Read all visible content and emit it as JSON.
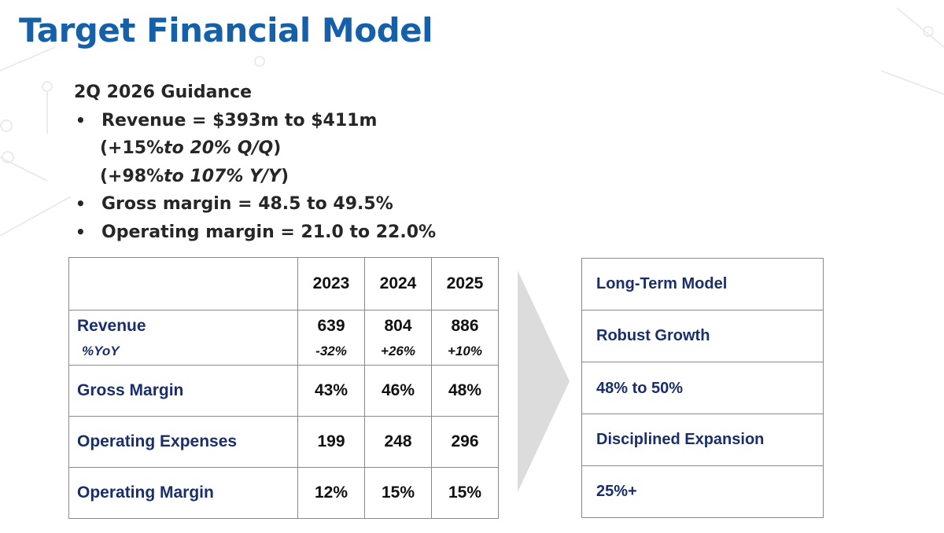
{
  "slide": {
    "title": "Target Financial Model"
  },
  "guidance": {
    "heading": "2Q 2026 Guidance",
    "revenue": "Revenue = $393m to $411m",
    "qq_open": "(+15%",
    "qq_italic": " to 20% Q/Q",
    "qq_close": ")",
    "yy_open": "(+98%",
    "yy_italic": " to 107% Y/Y",
    "yy_close": ")",
    "gross_margin": "Gross margin = 48.5 to 49.5%",
    "operating_margin": "Operating margin = 21.0 to 22.0%"
  },
  "table": {
    "years": [
      "2023",
      "2024",
      "2025"
    ],
    "revenue": {
      "label": "Revenue",
      "values": [
        "639",
        "804",
        "886"
      ]
    },
    "yoy": {
      "label": "%YoY",
      "values": [
        "-32%",
        "+26%",
        "+10%"
      ]
    },
    "gross_margin": {
      "label": "Gross Margin",
      "values": [
        "43%",
        "46%",
        "48%"
      ]
    },
    "opex": {
      "label": "Operating Expenses",
      "values": [
        "199",
        "248",
        "296"
      ]
    },
    "op_margin": {
      "label": "Operating Margin",
      "values": [
        "12%",
        "15%",
        "15%"
      ]
    }
  },
  "long_term": {
    "header": "Long-Term Model",
    "growth": "Robust Growth",
    "gross_margin": "48% to 50%",
    "opex": "Disciplined Expansion",
    "op_margin": "25%+"
  },
  "colors": {
    "title": "#1560a8",
    "table_text": "#1a2f6a",
    "arrow": "#dcdcdc"
  }
}
